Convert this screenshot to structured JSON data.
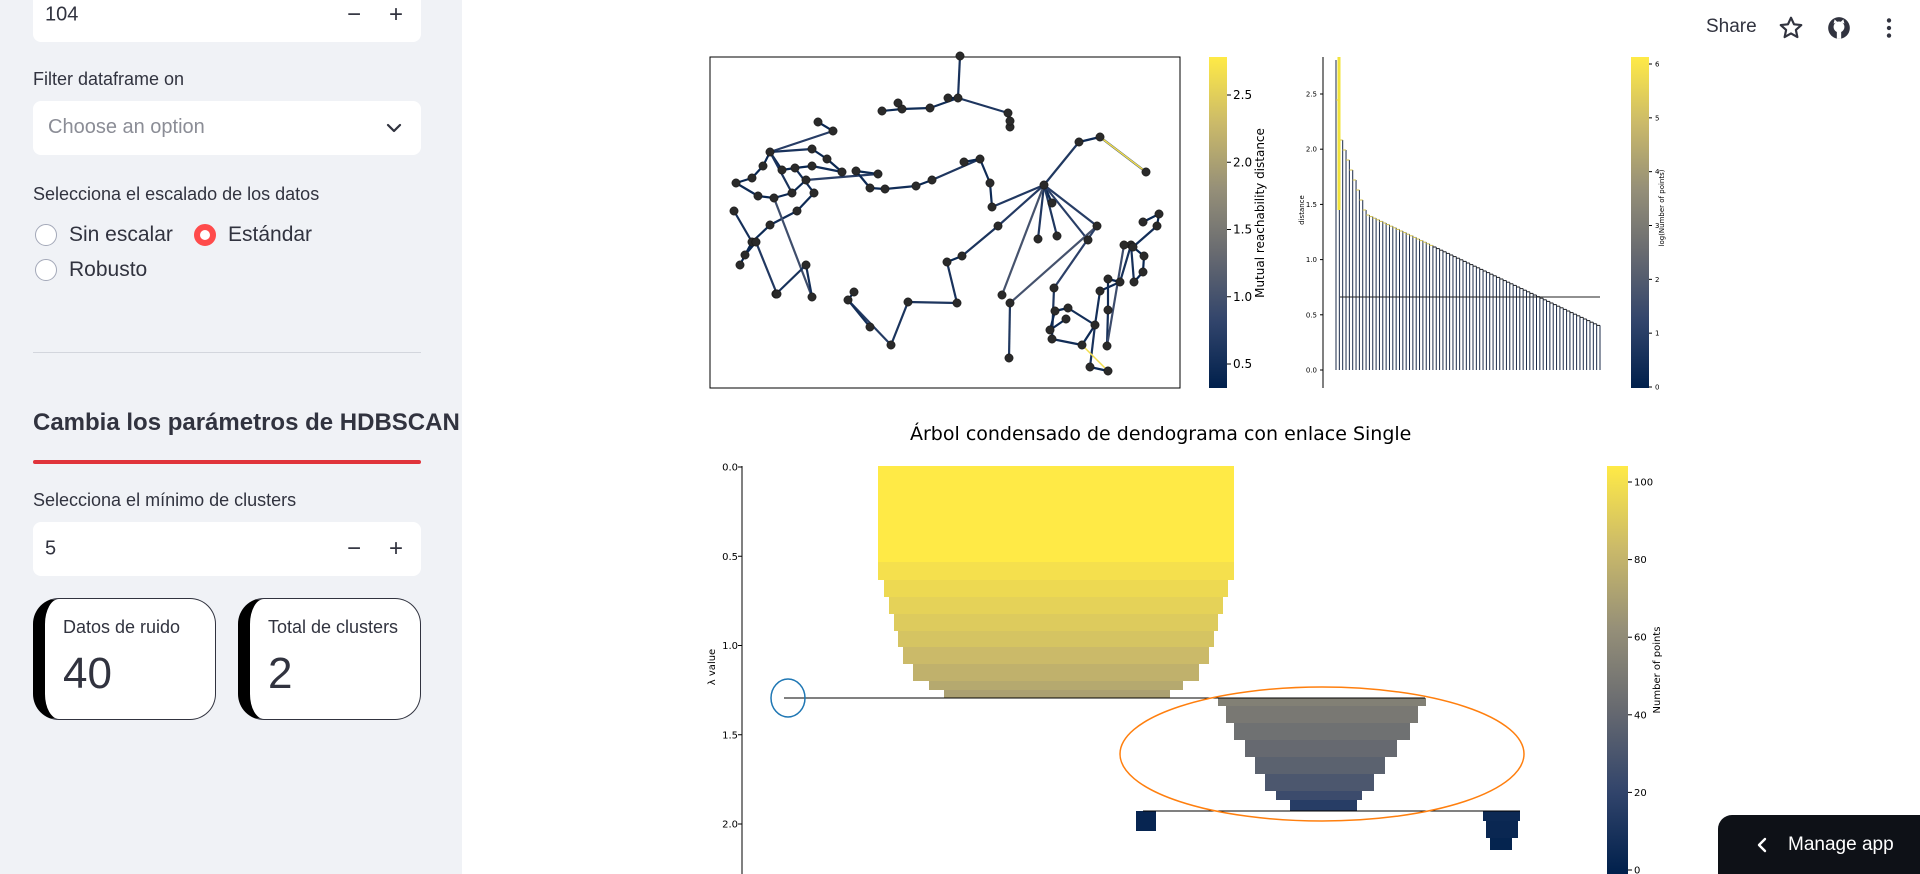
{
  "sidebar": {
    "top_number": {
      "value": "104",
      "minus": "−",
      "plus": "+"
    },
    "filter_label": "Filter dataframe on",
    "filter_placeholder": "Choose an option",
    "scaling_label": "Selecciona el escalado de los datos",
    "scaling_options": [
      {
        "label": "Sin escalar",
        "selected": false
      },
      {
        "label": "Estándar",
        "selected": true
      },
      {
        "label": "Robusto",
        "selected": false
      }
    ],
    "section_header": "Cambia los parámetros de HDBSCAN",
    "min_clusters_label": "Selecciona el mínimo de clusters",
    "min_clusters": {
      "value": "5",
      "minus": "−",
      "plus": "+"
    },
    "metrics": [
      {
        "label": "Datos de ruido",
        "value": "40"
      },
      {
        "label": "Total de clusters",
        "value": "2"
      }
    ]
  },
  "topbar": {
    "share_label": "Share",
    "icons": [
      "star-icon",
      "github-icon",
      "more-vertical-icon"
    ]
  },
  "plots": {
    "mst_colorbar_label": "Mutual reachability distance",
    "mst_colorbar_ticks": [
      "2.5",
      "2.0",
      "1.5",
      "1.0",
      "0.5"
    ],
    "dendro_ylabel": "distance",
    "dendro_yticks": [
      "2.5",
      "2.0",
      "1.5",
      "1.0",
      "0.5",
      "0.0"
    ],
    "dendro_colorbar_label": "log(Number of points)",
    "dendro_colorbar_ticks": [
      "6",
      "5",
      "4",
      "3",
      "2",
      "1",
      "0"
    ],
    "condensed_title": "Árbol condensado de dendograma con enlace Single",
    "condensed_ylabel": "λ value",
    "condensed_yticks": [
      "0.0",
      "0.5",
      "1.0",
      "1.5",
      "2.0"
    ],
    "condensed_colorbar_label": "Number of points",
    "condensed_colorbar_ticks": [
      "100",
      "80",
      "60",
      "40",
      "20",
      "0"
    ],
    "colormap": [
      "#00204c",
      "#31446b",
      "#666970",
      "#958f78",
      "#cbba69",
      "#ffea46"
    ],
    "highlight_colors": {
      "cluster_1": "#1f77b4",
      "cluster_2": "#ff7f0e"
    }
  },
  "manage_app": {
    "label": "Manage app"
  }
}
